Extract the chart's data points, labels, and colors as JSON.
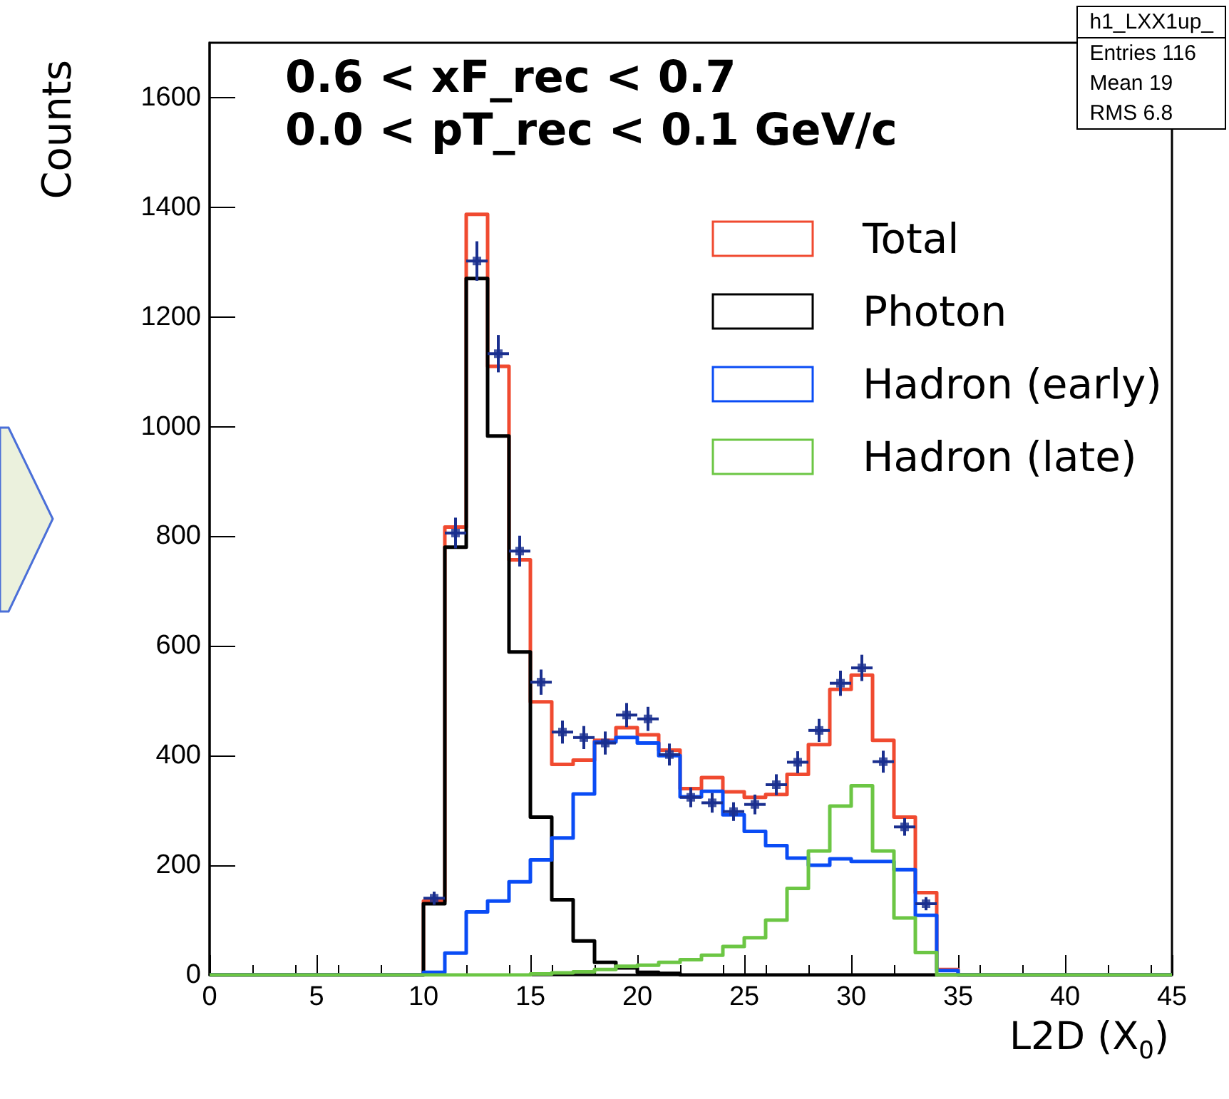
{
  "chart_data": {
    "type": "histogram",
    "title": "0.6 < xF_rec < 0.7",
    "subtitle": "0.0 < pT_rec < 0.1 GeV/c",
    "xlabel": "L2D (X$_{0}$)",
    "ylabel": "Counts",
    "bins": [
      0,
      1,
      2,
      3,
      4,
      5,
      6,
      7,
      8,
      9,
      10,
      11,
      12,
      13,
      14,
      15,
      16,
      17,
      18,
      19,
      20,
      21,
      22,
      23,
      24,
      25,
      26,
      27,
      28,
      29,
      30,
      31,
      32,
      33,
      34,
      35,
      36,
      37,
      38,
      39,
      40,
      41,
      42,
      43,
      44,
      45
    ],
    "series": [
      {
        "name": "Total",
        "type": "histogram",
        "color": "#f04a30",
        "values": [
          0,
          0,
          0,
          0,
          0,
          0,
          0,
          0,
          0,
          0,
          135,
          817,
          1387,
          1110,
          757,
          498,
          384,
          392,
          428,
          451,
          438,
          410,
          340,
          360,
          334,
          324,
          329,
          366,
          420,
          521,
          547,
          428,
          288,
          150,
          10,
          0,
          0,
          0,
          0,
          0,
          0,
          0,
          0,
          0,
          0
        ]
      },
      {
        "name": "Photon",
        "type": "histogram",
        "color": "#000000",
        "values": [
          0,
          0,
          0,
          0,
          0,
          0,
          0,
          0,
          0,
          0,
          130,
          780,
          1270,
          983,
          589,
          288,
          137,
          62,
          23,
          13,
          5,
          3,
          0,
          0,
          0,
          0,
          0,
          0,
          0,
          0,
          0,
          0,
          0,
          0,
          0,
          0,
          0,
          0,
          0,
          0,
          0,
          0,
          0,
          0,
          0
        ]
      },
      {
        "name": "Hadron (early)",
        "type": "histogram",
        "color": "#0a4cf5",
        "values": [
          0,
          0,
          0,
          0,
          0,
          0,
          0,
          0,
          0,
          0,
          5,
          40,
          115,
          135,
          170,
          210,
          250,
          330,
          425,
          433,
          423,
          400,
          325,
          335,
          292,
          262,
          236,
          213,
          200,
          212,
          207,
          207,
          192,
          109,
          8,
          0,
          0,
          0,
          0,
          0,
          0,
          0,
          0,
          0,
          0
        ]
      },
      {
        "name": "Hadron (late)",
        "type": "histogram",
        "color": "#6cc644",
        "values": [
          0,
          0,
          0,
          0,
          0,
          0,
          0,
          0,
          0,
          0,
          0,
          0,
          0,
          0,
          0,
          2,
          4,
          6,
          10,
          16,
          18,
          23,
          28,
          36,
          52,
          68,
          100,
          158,
          226,
          308,
          345,
          226,
          104,
          41,
          0,
          0,
          0,
          0,
          0,
          0,
          0,
          0,
          0,
          0,
          0
        ]
      },
      {
        "type": "scatter",
        "color": "#1a2f8f",
        "x": [
          10.5,
          11.5,
          12.5,
          13.5,
          14.5,
          15.5,
          16.5,
          17.5,
          18.5,
          19.5,
          20.5,
          21.5,
          22.5,
          23.5,
          24.5,
          25.5,
          26.5,
          27.5,
          28.5,
          29.5,
          30.5,
          31.5,
          32.5,
          33.5
        ],
        "values": [
          140,
          806,
          1302,
          1133,
          773,
          534,
          443,
          433,
          423,
          474,
          467,
          402,
          324,
          314,
          298,
          311,
          347,
          388,
          446,
          532,
          560,
          389,
          270,
          130
        ],
        "errors": [
          12,
          28,
          36,
          34,
          28,
          23,
          21,
          21,
          21,
          22,
          22,
          20,
          18,
          18,
          17,
          18,
          19,
          20,
          21,
          23,
          24,
          20,
          16,
          12
        ],
        "xerrors": [
          0.5,
          0.5,
          0.5,
          0.5,
          0.5,
          0.5,
          0.5,
          0.5,
          0.5,
          0.5,
          0.5,
          0.5,
          0.5,
          0.5,
          0.5,
          0.5,
          0.5,
          0.5,
          0.5,
          0.5,
          0.5,
          0.5,
          0.5,
          0.5
        ]
      }
    ],
    "xlim": [
      0,
      45
    ],
    "xticks": [
      0,
      5,
      10,
      15,
      20,
      25,
      30,
      35,
      40,
      45
    ],
    "ylim": [
      0,
      1700
    ],
    "yticks": [
      0,
      200,
      400,
      600,
      800,
      1000,
      1200,
      1400,
      1600
    ],
    "grid": false,
    "legend": "top right",
    "annotations": [
      "h1_LXX1up_",
      "Entries 116",
      "Mean 19",
      "RMS 6.8"
    ]
  }
}
